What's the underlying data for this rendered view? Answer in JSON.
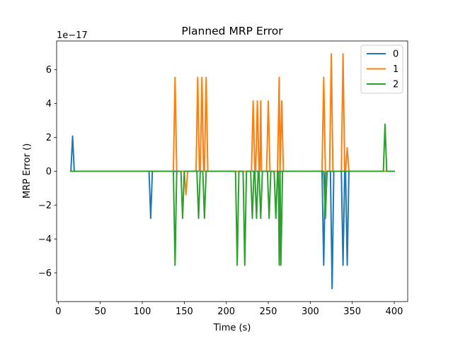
{
  "chart_data": {
    "type": "line",
    "title": "Planned MRP Error",
    "xlabel": "Time (s)",
    "ylabel": "MRP Error ()",
    "y_offset_label": "1e−17",
    "xlim": [
      -2,
      416
    ],
    "ylim": [
      -7.7,
      7.7
    ],
    "xticks": [
      0,
      50,
      100,
      150,
      200,
      250,
      300,
      350,
      400
    ],
    "yticks": [
      -6,
      -4,
      -2,
      0,
      2,
      4,
      6
    ],
    "grid": false,
    "legend_position": "top-right",
    "series": [
      {
        "name": "0",
        "color": "#1f77b4",
        "points": [
          [
            15,
            0
          ],
          [
            17,
            2.08
          ],
          [
            19,
            0
          ],
          [
            108,
            0
          ],
          [
            110,
            -2.78
          ],
          [
            112,
            0
          ],
          [
            314,
            0
          ],
          [
            316,
            -5.55
          ],
          [
            318,
            0
          ],
          [
            324,
            0
          ],
          [
            326,
            -6.94
          ],
          [
            328,
            0
          ],
          [
            337,
            0
          ],
          [
            339,
            -5.55
          ],
          [
            341,
            0
          ],
          [
            342,
            0
          ],
          [
            344,
            -5.55
          ],
          [
            346,
            0
          ],
          [
            400,
            0
          ]
        ]
      },
      {
        "name": "1",
        "color": "#ff7f0e",
        "points": [
          [
            15,
            0
          ],
          [
            137,
            0
          ],
          [
            139,
            5.55
          ],
          [
            141,
            0
          ],
          [
            150,
            0
          ],
          [
            152,
            -1.39
          ],
          [
            154,
            0
          ],
          [
            164,
            0
          ],
          [
            166,
            5.55
          ],
          [
            168,
            0
          ],
          [
            169,
            0
          ],
          [
            171,
            5.55
          ],
          [
            173,
            0
          ],
          [
            174,
            0
          ],
          [
            176,
            5.55
          ],
          [
            178,
            0
          ],
          [
            230,
            0
          ],
          [
            232,
            4.16
          ],
          [
            234,
            0
          ],
          [
            235,
            0
          ],
          [
            237,
            4.16
          ],
          [
            239,
            0
          ],
          [
            240,
            0
          ],
          [
            241,
            4.16
          ],
          [
            242,
            0
          ],
          [
            248,
            0
          ],
          [
            250,
            4.16
          ],
          [
            252,
            0
          ],
          [
            261,
            0
          ],
          [
            263,
            5.55
          ],
          [
            264,
            0
          ],
          [
            266,
            4.16
          ],
          [
            268,
            0
          ],
          [
            314,
            0
          ],
          [
            316,
            5.55
          ],
          [
            318,
            0
          ],
          [
            323,
            0
          ],
          [
            325,
            6.94
          ],
          [
            327,
            0
          ],
          [
            337,
            0
          ],
          [
            339,
            6.94
          ],
          [
            341,
            0
          ],
          [
            342,
            0
          ],
          [
            344,
            1.39
          ],
          [
            346,
            0
          ],
          [
            400,
            0
          ]
        ]
      },
      {
        "name": "2",
        "color": "#2ca02c",
        "points": [
          [
            15,
            0
          ],
          [
            137,
            0
          ],
          [
            139,
            -5.55
          ],
          [
            141,
            0
          ],
          [
            146,
            0
          ],
          [
            148,
            -2.78
          ],
          [
            150,
            0
          ],
          [
            165,
            0
          ],
          [
            167,
            -2.78
          ],
          [
            169,
            0
          ],
          [
            172,
            0
          ],
          [
            174,
            -2.78
          ],
          [
            176,
            0
          ],
          [
            211,
            0
          ],
          [
            213,
            -5.55
          ],
          [
            215,
            0
          ],
          [
            220,
            0
          ],
          [
            222,
            -5.55
          ],
          [
            224,
            0
          ],
          [
            229,
            0
          ],
          [
            231,
            -2.78
          ],
          [
            233,
            0
          ],
          [
            234,
            0
          ],
          [
            236,
            -2.78
          ],
          [
            238,
            0
          ],
          [
            239,
            0
          ],
          [
            241,
            -2.78
          ],
          [
            243,
            0
          ],
          [
            249,
            0
          ],
          [
            251,
            -2.78
          ],
          [
            253,
            0
          ],
          [
            257,
            0
          ],
          [
            259,
            -2.78
          ],
          [
            261,
            0
          ],
          [
            262,
            0
          ],
          [
            263,
            -5.55
          ],
          [
            264,
            0
          ],
          [
            265,
            -5.55
          ],
          [
            267,
            0
          ],
          [
            316,
            0
          ],
          [
            318,
            -2.78
          ],
          [
            320,
            0
          ],
          [
            387,
            0
          ],
          [
            389,
            2.78
          ],
          [
            391,
            0
          ],
          [
            400,
            0
          ]
        ]
      }
    ]
  }
}
